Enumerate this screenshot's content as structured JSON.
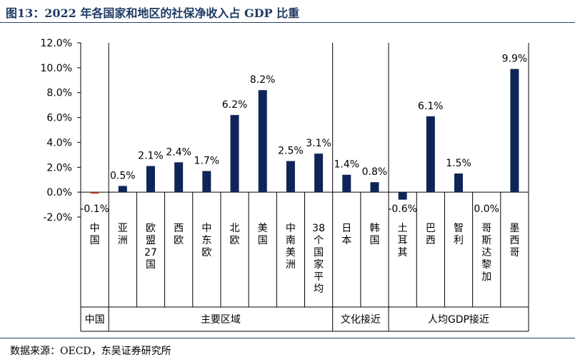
{
  "title": "图13：2022 年各国家和地区的社保净收入占 GDP 比重",
  "source": "数据来源：OECD，东吴证券研究所",
  "chart_data": {
    "type": "bar",
    "categories": [
      "中国",
      "亚洲",
      "欧盟27国",
      "西欧",
      "中东欧",
      "北欧",
      "美国",
      "中南美洲",
      "38个国家平均",
      "日本",
      "韩国",
      "土耳其",
      "巴西",
      "智利",
      "哥斯达黎加",
      "墨西哥"
    ],
    "values": [
      -0.1,
      0.5,
      2.1,
      2.4,
      1.7,
      6.2,
      8.2,
      2.5,
      3.1,
      1.4,
      0.8,
      -0.6,
      6.1,
      1.5,
      0.0,
      9.9
    ],
    "data_labels": [
      "-0.1%",
      "0.5%",
      "2.1%",
      "2.4%",
      "1.7%",
      "6.2%",
      "8.2%",
      "2.5%",
      "3.1%",
      "1.4%",
      "0.8%",
      "-0.6%",
      "6.1%",
      "1.5%",
      "0.0%",
      "9.9%"
    ],
    "groups": [
      {
        "name": "中国",
        "count": 1
      },
      {
        "name": "主要区域",
        "count": 8
      },
      {
        "name": "文化接近",
        "count": 2
      },
      {
        "name": "人均GDP接近",
        "count": 5
      }
    ],
    "ylim": [
      -2,
      12
    ],
    "yticks": [
      "-2.0%",
      "0.0%",
      "2.0%",
      "4.0%",
      "6.0%",
      "8.0%",
      "10.0%",
      "12.0%"
    ],
    "bar_color": "#0f2557",
    "highlight_color": "#c0392b",
    "xlabel": "",
    "ylabel": ""
  }
}
